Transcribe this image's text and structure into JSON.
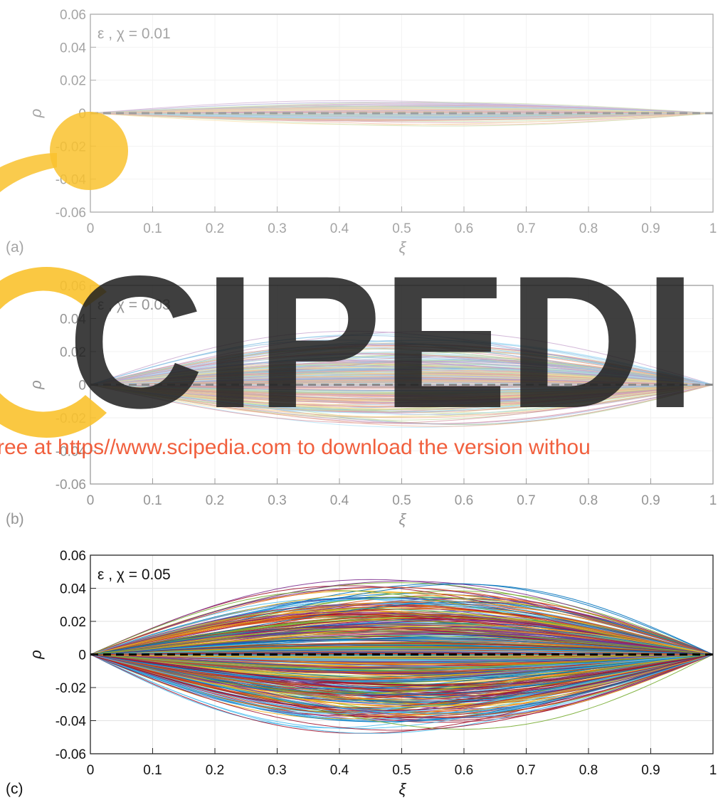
{
  "chart_data": [
    {
      "type": "line",
      "panel_label": "(a)",
      "annotation": "ε , χ = 0.01",
      "xlabel": "ξ",
      "ylabel": "ρ",
      "xlim": [
        0,
        1
      ],
      "ylim": [
        -0.06,
        0.06
      ],
      "xticks": [
        "0",
        "0.1",
        "0.2",
        "0.3",
        "0.4",
        "0.5",
        "0.6",
        "0.7",
        "0.8",
        "0.9",
        "1"
      ],
      "yticks": [
        "0.06",
        "0.04",
        "0.02",
        "0",
        "-0.02",
        "-0.04",
        "-0.06"
      ],
      "grid": true,
      "mean_line_y": 0,
      "envelope_max": 0.009,
      "envelope_min": -0.009
    },
    {
      "type": "line",
      "panel_label": "(b)",
      "annotation": "ε , χ = 0.03",
      "xlabel": "ξ",
      "ylabel": "ρ",
      "xlim": [
        0,
        1
      ],
      "ylim": [
        -0.06,
        0.06
      ],
      "xticks": [
        "0",
        "0.1",
        "0.2",
        "0.3",
        "0.4",
        "0.5",
        "0.6",
        "0.7",
        "0.8",
        "0.9",
        "1"
      ],
      "yticks": [
        "0.06",
        "0.04",
        "0.02",
        "0",
        "-0.02",
        "-0.04",
        "-0.06"
      ],
      "grid": true,
      "mean_line_y": 0,
      "envelope_max": 0.034,
      "envelope_min": -0.03
    },
    {
      "type": "line",
      "panel_label": "(c)",
      "annotation": "ε , χ = 0.05",
      "xlabel": "ξ",
      "ylabel": "ρ",
      "xlim": [
        0,
        1
      ],
      "ylim": [
        -0.06,
        0.06
      ],
      "xticks": [
        "0",
        "0.1",
        "0.2",
        "0.3",
        "0.4",
        "0.5",
        "0.6",
        "0.7",
        "0.8",
        "0.9",
        "1"
      ],
      "yticks": [
        "0.06",
        "0.04",
        "0.02",
        "0",
        "-0.02",
        "-0.04",
        "-0.06"
      ],
      "grid": true,
      "mean_line_y": 0,
      "envelope_max": 0.051,
      "envelope_min": -0.055
    }
  ],
  "series_colors": [
    "#0072BD",
    "#D95319",
    "#EDB120",
    "#7E2F8E",
    "#77AC30",
    "#4DBEEE",
    "#A2142F"
  ],
  "watermark": {
    "logo_text": "CIPEDI",
    "banner": "ree at https//www.scipedia.com to download the version withou",
    "logo_color": "#1e1e1e",
    "ring_color": "#f9c22e",
    "banner_color": "#f0522d"
  }
}
